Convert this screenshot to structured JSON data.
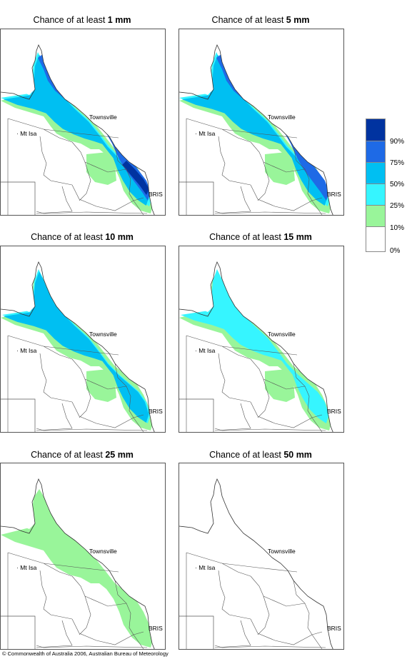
{
  "panels": [
    {
      "title_prefix": "Chance of at least ",
      "amount": "1 mm",
      "level": 5
    },
    {
      "title_prefix": "Chance of at least ",
      "amount": "5 mm",
      "level": 4
    },
    {
      "title_prefix": "Chance of at least ",
      "amount": "10 mm",
      "level": 3
    },
    {
      "title_prefix": "Chance of at least ",
      "amount": "15 mm",
      "level": 2
    },
    {
      "title_prefix": "Chance of at least ",
      "amount": "25 mm",
      "level": 1
    },
    {
      "title_prefix": "Chance of at least ",
      "amount": "50 mm",
      "level": 0
    }
  ],
  "places": {
    "townsville": "Townsville",
    "mt_isa": "Mt Isa",
    "brisbane": "BRIS"
  },
  "legend": {
    "labels": [
      "90%",
      "75%",
      "50%",
      "25%",
      "10%",
      "0%"
    ],
    "colors": [
      "#0033a0",
      "#1e6ae6",
      "#00bff2",
      "#36f5ff",
      "#99f59a",
      "#ffffff"
    ]
  },
  "copyright": "© Commonwealth of Australia 2006, Australian Bureau of Meteorology"
}
